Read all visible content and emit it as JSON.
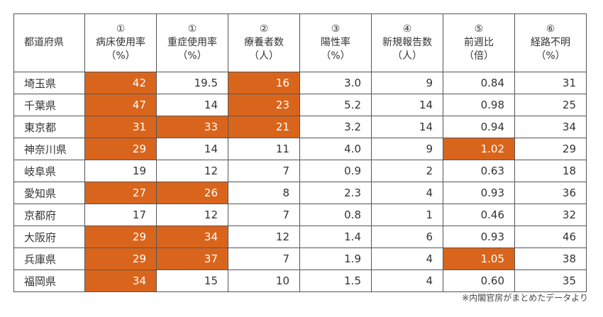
{
  "table": {
    "headers": [
      {
        "lines": [
          "都道府県"
        ]
      },
      {
        "lines": [
          "①",
          "病床使用率",
          "（%）"
        ]
      },
      {
        "lines": [
          "①",
          "重症使用率",
          "（%）"
        ]
      },
      {
        "lines": [
          "②",
          "療養者数",
          "（人）"
        ]
      },
      {
        "lines": [
          "③",
          "陽性率",
          "（%）"
        ]
      },
      {
        "lines": [
          "④",
          "新規報告数",
          "（人）"
        ]
      },
      {
        "lines": [
          "⑤",
          "前週比",
          "（倍）"
        ]
      },
      {
        "lines": [
          "⑥",
          "経路不明",
          "（%）"
        ]
      }
    ],
    "highlight_color": "#d9651c",
    "rows": [
      {
        "name": "埼玉県",
        "cells": [
          "42",
          "19.5",
          "16",
          "3.0",
          "9",
          "0.84",
          "31"
        ],
        "highlight": [
          0,
          2
        ]
      },
      {
        "name": "千葉県",
        "cells": [
          "47",
          "14",
          "23",
          "5.2",
          "14",
          "0.98",
          "25"
        ],
        "highlight": [
          0,
          2
        ]
      },
      {
        "name": "東京都",
        "cells": [
          "31",
          "33",
          "21",
          "3.2",
          "14",
          "0.94",
          "34"
        ],
        "highlight": [
          0,
          1,
          2
        ]
      },
      {
        "name": "神奈川県",
        "cells": [
          "29",
          "14",
          "11",
          "4.0",
          "9",
          "1.02",
          "29"
        ],
        "highlight": [
          0,
          5
        ]
      },
      {
        "name": "岐阜県",
        "cells": [
          "19",
          "12",
          "7",
          "0.9",
          "2",
          "0.63",
          "18"
        ],
        "highlight": []
      },
      {
        "name": "愛知県",
        "cells": [
          "27",
          "26",
          "8",
          "2.3",
          "4",
          "0.93",
          "36"
        ],
        "highlight": [
          0,
          1
        ]
      },
      {
        "name": "京都府",
        "cells": [
          "17",
          "12",
          "7",
          "0.8",
          "1",
          "0.46",
          "32"
        ],
        "highlight": []
      },
      {
        "name": "大阪府",
        "cells": [
          "29",
          "34",
          "12",
          "1.4",
          "6",
          "0.93",
          "46"
        ],
        "highlight": [
          0,
          1
        ]
      },
      {
        "name": "兵庫県",
        "cells": [
          "29",
          "37",
          "7",
          "1.9",
          "4",
          "1.05",
          "38"
        ],
        "highlight": [
          0,
          1,
          5
        ]
      },
      {
        "name": "福岡県",
        "cells": [
          "34",
          "15",
          "10",
          "1.5",
          "4",
          "0.60",
          "35"
        ],
        "highlight": [
          0
        ]
      }
    ]
  },
  "note": "※内閣官房がまとめたデータより"
}
